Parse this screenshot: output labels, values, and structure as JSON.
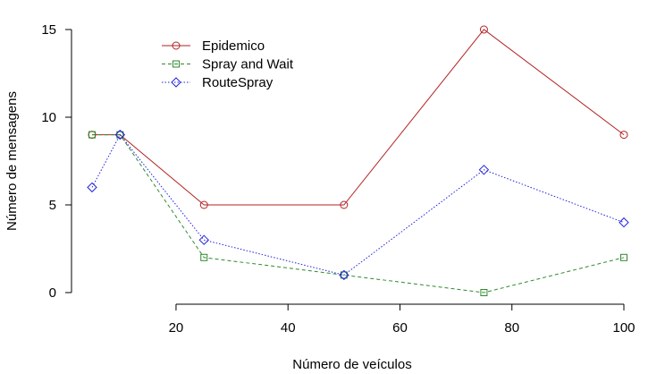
{
  "chart_data": {
    "type": "line",
    "title": "",
    "xlabel": "Número de veículos",
    "ylabel": "Número de mensagens",
    "x": [
      5,
      10,
      25,
      50,
      75,
      100
    ],
    "xlim": [
      5,
      100
    ],
    "ylim": [
      0,
      15
    ],
    "xticks": [
      20,
      40,
      60,
      80,
      100
    ],
    "yticks": [
      0,
      5,
      10,
      15
    ],
    "grid": false,
    "legend_position": "top-left",
    "series": [
      {
        "name": "Epidemico",
        "values": [
          9,
          9,
          5,
          5,
          15,
          9
        ],
        "color": "#b22222",
        "marker": "circle",
        "line": "solid"
      },
      {
        "name": "Spray and Wait",
        "values": [
          9,
          9,
          2,
          1,
          0,
          2
        ],
        "color": "#2e8b2e",
        "marker": "square",
        "line": "dashed"
      },
      {
        "name": "RouteSpray",
        "values": [
          6,
          9,
          3,
          1,
          7,
          4
        ],
        "color": "#2222dd",
        "marker": "diamond",
        "line": "dotted"
      }
    ]
  }
}
